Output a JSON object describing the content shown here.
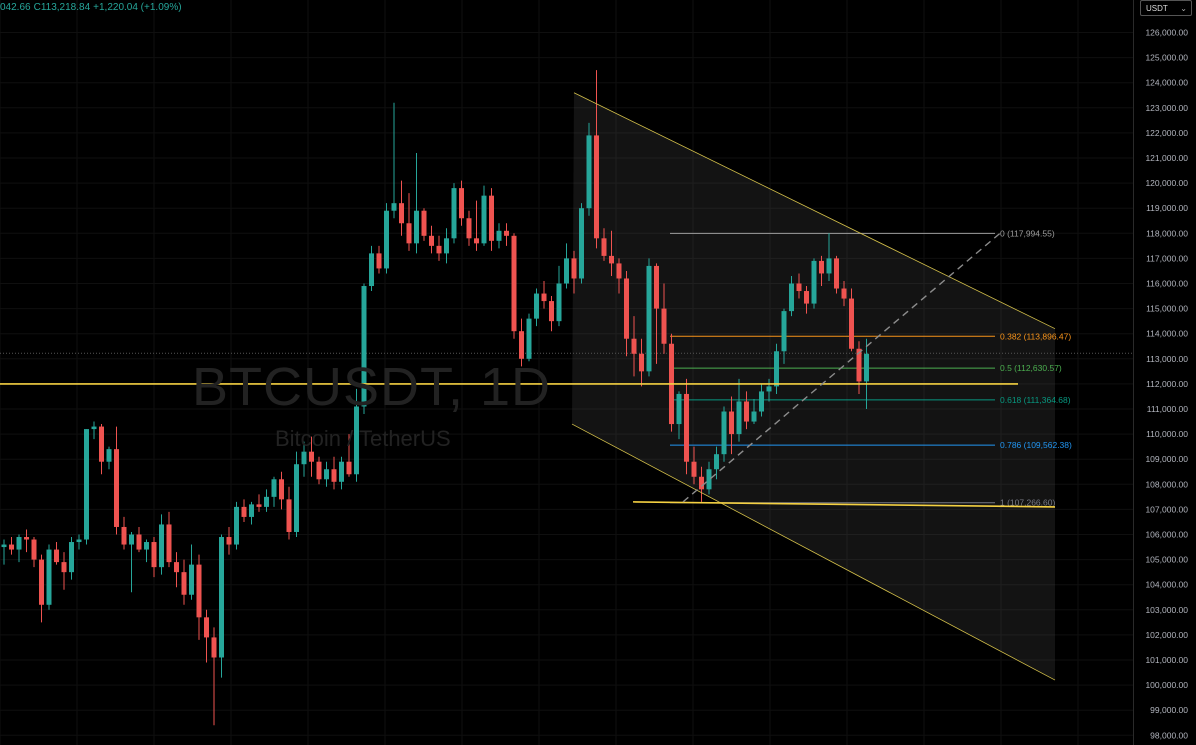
{
  "symbol": "BTCUSDT, 1D",
  "description": "Bitcoin / TetherUS",
  "currency": "USDT",
  "ohlc": {
    "open_partial": "042.66",
    "close_label": "C",
    "close": "113,218.84",
    "change": "+1,220.04 (+1.09%)"
  },
  "chart_data": {
    "type": "candlestick",
    "ylim": [
      98000,
      126000
    ],
    "y_ticks": [
      {
        "v": 126000,
        "label": "126,000.00"
      },
      {
        "v": 125000,
        "label": "125,000.00"
      },
      {
        "v": 124000,
        "label": "124,000.00"
      },
      {
        "v": 123000,
        "label": "123,000.00"
      },
      {
        "v": 122000,
        "label": "122,000.00"
      },
      {
        "v": 121000,
        "label": "121,000.00"
      },
      {
        "v": 120000,
        "label": "120,000.00"
      },
      {
        "v": 119000,
        "label": "119,000.00"
      },
      {
        "v": 118000,
        "label": "118,000.00"
      },
      {
        "v": 117000,
        "label": "117,000.00"
      },
      {
        "v": 116000,
        "label": "116,000.00"
      },
      {
        "v": 115000,
        "label": "115,000.00"
      },
      {
        "v": 114000,
        "label": "114,000.00"
      },
      {
        "v": 113000,
        "label": "113,000.00"
      },
      {
        "v": 112000,
        "label": "112,000.00"
      },
      {
        "v": 111000,
        "label": "111,000.00"
      },
      {
        "v": 110000,
        "label": "110,000.00"
      },
      {
        "v": 109000,
        "label": "109,000.00"
      },
      {
        "v": 108000,
        "label": "108,000.00"
      },
      {
        "v": 107000,
        "label": "107,000.00"
      },
      {
        "v": 106000,
        "label": "106,000.00"
      },
      {
        "v": 105000,
        "label": "105,000.00"
      },
      {
        "v": 104000,
        "label": "104,000.00"
      },
      {
        "v": 103000,
        "label": "103,000.00"
      },
      {
        "v": 102000,
        "label": "102,000.00"
      },
      {
        "v": 101000,
        "label": "101,000.00"
      },
      {
        "v": 100000,
        "label": "100,000.00"
      },
      {
        "v": 99000,
        "label": "99,000.00"
      },
      {
        "v": 98000,
        "label": "98,000.00"
      }
    ],
    "current_price": 113218.84,
    "candles": [
      [
        105500,
        105800,
        104800,
        105600
      ],
      [
        105600,
        105900,
        105200,
        105400
      ],
      [
        105400,
        106000,
        104900,
        105900
      ],
      [
        105900,
        106200,
        105300,
        105800
      ],
      [
        105800,
        105900,
        104700,
        105000
      ],
      [
        105000,
        105200,
        102500,
        103200
      ],
      [
        103200,
        105600,
        103000,
        105400
      ],
      [
        105400,
        105700,
        104800,
        104900
      ],
      [
        104900,
        105300,
        103800,
        104500
      ],
      [
        104500,
        105900,
        104200,
        105700
      ],
      [
        105700,
        106000,
        105400,
        105800
      ],
      [
        105800,
        110200,
        105600,
        110200
      ],
      [
        110200,
        110500,
        109800,
        110300
      ],
      [
        110300,
        110400,
        108400,
        108900
      ],
      [
        108900,
        109500,
        108600,
        109400
      ],
      [
        109400,
        110300,
        106000,
        106300
      ],
      [
        106300,
        106700,
        105400,
        105600
      ],
      [
        105600,
        106100,
        103700,
        106000
      ],
      [
        106000,
        106300,
        105300,
        105400
      ],
      [
        105400,
        105800,
        104900,
        105700
      ],
      [
        105700,
        105900,
        104300,
        104700
      ],
      [
        104700,
        106800,
        104400,
        106400
      ],
      [
        106400,
        106900,
        104700,
        104900
      ],
      [
        104900,
        105300,
        103900,
        104500
      ],
      [
        104500,
        105000,
        103200,
        103600
      ],
      [
        103600,
        105600,
        103400,
        104800
      ],
      [
        104800,
        105200,
        101800,
        102700
      ],
      [
        102700,
        103000,
        100900,
        101900
      ],
      [
        101900,
        102300,
        98400,
        101100
      ],
      [
        101100,
        106000,
        100300,
        105900
      ],
      [
        105900,
        106300,
        105200,
        105600
      ],
      [
        105600,
        107300,
        105400,
        107100
      ],
      [
        107100,
        107400,
        106500,
        106700
      ],
      [
        106700,
        107300,
        106400,
        107200
      ],
      [
        107200,
        107600,
        106900,
        107100
      ],
      [
        107100,
        107800,
        106900,
        107500
      ],
      [
        107500,
        108300,
        107100,
        108200
      ],
      [
        108200,
        108500,
        107000,
        107400
      ],
      [
        107400,
        107900,
        105800,
        106100
      ],
      [
        106100,
        109300,
        105900,
        108800
      ],
      [
        108800,
        109700,
        108300,
        109300
      ],
      [
        109300,
        109900,
        108300,
        108900
      ],
      [
        108900,
        109100,
        108000,
        108200
      ],
      [
        108200,
        108900,
        107900,
        108600
      ],
      [
        108600,
        109100,
        107800,
        108100
      ],
      [
        108100,
        109100,
        107800,
        108900
      ],
      [
        108900,
        110000,
        108300,
        108400
      ],
      [
        108400,
        111800,
        108100,
        111100
      ],
      [
        111100,
        116000,
        110800,
        115900
      ],
      [
        115900,
        117500,
        115700,
        117200
      ],
      [
        117200,
        117500,
        116400,
        116600
      ],
      [
        116600,
        119200,
        116400,
        118900
      ],
      [
        118900,
        123200,
        118600,
        119200
      ],
      [
        119200,
        120100,
        117900,
        118400
      ],
      [
        118400,
        119600,
        117300,
        117600
      ],
      [
        117600,
        121200,
        117200,
        118900
      ],
      [
        118900,
        119000,
        117700,
        117900
      ],
      [
        117900,
        118300,
        117200,
        117500
      ],
      [
        117500,
        117900,
        116900,
        117200
      ],
      [
        117200,
        118200,
        116800,
        117800
      ],
      [
        117800,
        120000,
        117600,
        119800
      ],
      [
        119800,
        120100,
        118300,
        118600
      ],
      [
        118600,
        118900,
        117500,
        117800
      ],
      [
        117800,
        119300,
        117300,
        117600
      ],
      [
        117600,
        119900,
        117500,
        119500
      ],
      [
        119500,
        119800,
        117300,
        117700
      ],
      [
        117700,
        118400,
        117400,
        118100
      ],
      [
        118100,
        118400,
        117500,
        117900
      ],
      [
        117900,
        118000,
        113800,
        114100
      ],
      [
        114100,
        114600,
        112700,
        113000
      ],
      [
        113000,
        114800,
        112900,
        114600
      ],
      [
        114600,
        115800,
        114300,
        115600
      ],
      [
        115600,
        116100,
        115000,
        115300
      ],
      [
        115300,
        115500,
        114100,
        114500
      ],
      [
        114500,
        116700,
        114300,
        116000
      ],
      [
        116000,
        117600,
        115800,
        117000
      ],
      [
        117000,
        117300,
        115600,
        116200
      ],
      [
        116200,
        119200,
        116000,
        119000
      ],
      [
        119000,
        122400,
        118700,
        121900
      ],
      [
        121900,
        124500,
        117400,
        117800
      ],
      [
        117800,
        118200,
        116900,
        117100
      ],
      [
        117100,
        118100,
        116300,
        116800
      ],
      [
        116800,
        117000,
        115600,
        116200
      ],
      [
        116200,
        116500,
        113100,
        113800
      ],
      [
        113800,
        114700,
        112300,
        113200
      ],
      [
        113200,
        113800,
        111900,
        112500
      ],
      [
        112500,
        117000,
        112300,
        116700
      ],
      [
        116700,
        116800,
        112800,
        115000
      ],
      [
        115000,
        116000,
        113200,
        113600
      ],
      [
        113600,
        114000,
        110100,
        110400
      ],
      [
        110400,
        111700,
        109800,
        111600
      ],
      [
        111600,
        112200,
        108400,
        108900
      ],
      [
        108900,
        109500,
        108000,
        108300
      ],
      [
        108300,
        108700,
        107300,
        107800
      ],
      [
        107800,
        108900,
        107600,
        108600
      ],
      [
        108600,
        109500,
        108200,
        109200
      ],
      [
        109200,
        111100,
        108900,
        110900
      ],
      [
        110900,
        111500,
        109200,
        110000
      ],
      [
        110000,
        112200,
        109700,
        111300
      ],
      [
        111300,
        111700,
        110200,
        110500
      ],
      [
        110500,
        111400,
        110400,
        110900
      ],
      [
        110900,
        112000,
        110700,
        111700
      ],
      [
        111700,
        112200,
        111300,
        111900
      ],
      [
        111900,
        113600,
        111600,
        113300
      ],
      [
        113300,
        115000,
        112800,
        114900
      ],
      [
        114900,
        116300,
        114700,
        116000
      ],
      [
        116000,
        116400,
        115400,
        115700
      ],
      [
        115700,
        115900,
        114800,
        115200
      ],
      [
        115200,
        117000,
        115000,
        116900
      ],
      [
        116900,
        117100,
        115900,
        116400
      ],
      [
        116400,
        118000,
        116100,
        117000
      ],
      [
        117000,
        117100,
        115600,
        115800
      ],
      [
        115800,
        116100,
        115100,
        115400
      ],
      [
        115400,
        115800,
        113300,
        113400
      ],
      [
        113400,
        113700,
        111600,
        112100
      ],
      [
        112100,
        113800,
        111000,
        113200
      ]
    ],
    "trendlines": [
      {
        "name": "channel-upper",
        "from": [
          574,
          123600
        ],
        "to": [
          1055,
          114200
        ]
      },
      {
        "name": "channel-lower",
        "from": [
          572,
          110400
        ],
        "to": [
          1055,
          100200
        ]
      },
      {
        "name": "support-112000",
        "from": [
          0,
          112000
        ],
        "to": [
          1018,
          112000
        ]
      },
      {
        "name": "support-107200",
        "from": [
          633,
          107300
        ],
        "to": [
          1055,
          107100
        ]
      },
      {
        "name": "diagonal-dashed",
        "from": [
          683,
          107300
        ],
        "to": [
          1000,
          118000
        ]
      }
    ],
    "fibonacci": [
      {
        "level": "0",
        "value": "117,994.55",
        "price": 117994.55,
        "color": "#9e9e9e"
      },
      {
        "level": "0.382",
        "value": "113,896.47",
        "price": 113896.47,
        "color": "#f7931a"
      },
      {
        "level": "0.5",
        "value": "112,630.57",
        "price": 112630.57,
        "color": "#4caf50"
      },
      {
        "level": "0.618",
        "value": "111,364.68",
        "price": 111364.68,
        "color": "#089981"
      },
      {
        "level": "0.786",
        "value": "109,562.38",
        "price": 109562.38,
        "color": "#2196f3"
      },
      {
        "level": "1",
        "value": "107,266.60",
        "price": 107266.6,
        "color": "#787b86"
      }
    ],
    "colors": {
      "up": "#26a69a",
      "down": "#ef5350",
      "channel": "#d4c04a",
      "support": "#f5d142"
    }
  }
}
